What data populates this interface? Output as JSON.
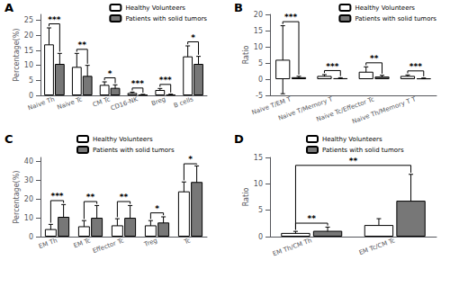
{
  "chart_data": [
    {
      "type": "bar",
      "title": "A",
      "categories": [
        "Naive Th",
        "Naive Tc",
        "CM Tc",
        "CD16-NK",
        "Breg",
        "B cells"
      ],
      "series": [
        {
          "name": "Healthy Volunteers",
          "color": "#ffffff",
          "values": [
            17,
            9.5,
            3.5,
            0.8,
            1.8,
            13
          ],
          "errors": [
            5.5,
            4.5,
            1.0,
            0.3,
            0.5,
            3.5
          ]
        },
        {
          "name": "Patients with solid tumors",
          "color": "#777777",
          "values": [
            10.5,
            6.5,
            2.5,
            0.2,
            0.25,
            10.5
          ],
          "errors": [
            3.5,
            3.5,
            1.0,
            0.15,
            0.15,
            2.5
          ]
        }
      ],
      "ylabel": "Percentage(%)",
      "ylim": [
        0,
        27
      ],
      "yticks": [
        0,
        5,
        10,
        15,
        20,
        25
      ],
      "grid": false,
      "legend": "upper right",
      "annotations": [
        {
          "text": "***",
          "category": "Naive Th"
        },
        {
          "text": "**",
          "category": "Naive Tc"
        },
        {
          "text": "*",
          "category": "CM Tc"
        },
        {
          "text": "***",
          "category": "CD16-NK"
        },
        {
          "text": "***",
          "category": "Breg"
        },
        {
          "text": "*",
          "category": "B cells"
        }
      ]
    },
    {
      "type": "bar",
      "title": "B",
      "categories": [
        "Naive T/EM T",
        "Naive T/Memory T",
        "Naive Tc/Effector Tc",
        "Naive Th/Memory T T"
      ],
      "series": [
        {
          "name": "Healthy Volunteers",
          "color": "#ffffff",
          "values": [
            6.0,
            1.0,
            2.3,
            1.0
          ],
          "errors": [
            10.5,
            0.4,
            1.5,
            0.3
          ]
        },
        {
          "name": "Patients with solid tumors",
          "color": "#777777",
          "values": [
            0.6,
            0.3,
            0.8,
            0.25
          ],
          "errors": [
            0.3,
            0.15,
            0.4,
            0.12
          ]
        }
      ],
      "ylabel": "Ratio",
      "ylim": [
        -5,
        20
      ],
      "yticks": [
        -5,
        0,
        5,
        10,
        15,
        20
      ],
      "grid": false,
      "legend": "upper right",
      "annotations": [
        {
          "text": "***",
          "category": "Naive T/EM T"
        },
        {
          "text": "***",
          "category": "Naive T/Memory T"
        },
        {
          "text": "**",
          "category": "Naive Tc/Effector Tc"
        },
        {
          "text": "***",
          "category": "Naive Th/Memory T T"
        }
      ]
    },
    {
      "type": "bar",
      "title": "C",
      "categories": [
        "EM Th",
        "EM Tc",
        "Effector Tc",
        "Treg",
        "Tc"
      ],
      "series": [
        {
          "name": "Healthy Volunteers",
          "color": "#ffffff",
          "values": [
            4.0,
            5.5,
            6.0,
            6.0,
            24.0
          ],
          "errors": [
            2.5,
            3.0,
            3.5,
            2.5,
            5.0
          ]
        },
        {
          "name": "Patients with solid tumors",
          "color": "#777777",
          "values": [
            10.5,
            10.0,
            10.0,
            7.5,
            29.0
          ],
          "errors": [
            6.5,
            6.5,
            6.5,
            3.0,
            8.5
          ]
        }
      ],
      "ylabel": "Percentage(%)",
      "ylim": [
        0,
        42
      ],
      "yticks": [
        0,
        10,
        20,
        30,
        40
      ],
      "grid": false,
      "legend": "upper center",
      "annotations": [
        {
          "text": "***",
          "category": "EM Th"
        },
        {
          "text": "**",
          "category": "EM Tc"
        },
        {
          "text": "**",
          "category": "Effector Tc"
        },
        {
          "text": "*",
          "category": "Treg"
        },
        {
          "text": "*",
          "category": "Tc"
        }
      ]
    },
    {
      "type": "bar",
      "title": "D",
      "categories": [
        "EM Th/CM Th",
        "EM Tc/CM Tc"
      ],
      "series": [
        {
          "name": "Healthy Volunteers",
          "color": "#ffffff",
          "values": [
            0.7,
            2.2
          ],
          "errors": [
            0.3,
            1.2
          ]
        },
        {
          "name": "Patients with solid tumors",
          "color": "#777777",
          "values": [
            1.1,
            6.8
          ],
          "errors": [
            0.7,
            5.0
          ]
        }
      ],
      "ylabel": "Ratio",
      "ylim": [
        0,
        15
      ],
      "yticks": [
        0,
        5,
        10,
        15
      ],
      "grid": false,
      "legend": "upper center",
      "annotations": [
        {
          "text": "**",
          "category": "EM Th/CM Th"
        },
        {
          "text": "**",
          "from": "EM Th/CM Th",
          "to": "EM Tc/CM Tc"
        }
      ]
    }
  ]
}
